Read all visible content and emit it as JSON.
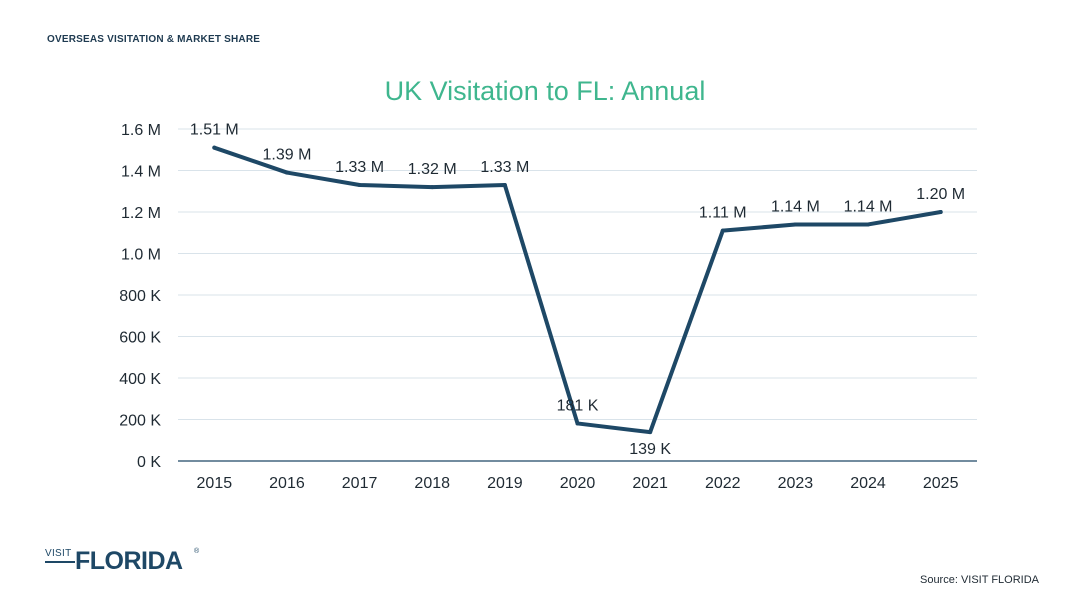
{
  "header": {
    "section_label": "OVERSEAS VISITATION & MARKET SHARE"
  },
  "footer": {
    "logo_small": "VISIT",
    "logo_big": "FLORIDA",
    "logo_reg": "®",
    "source": "Source: VISIT FLORIDA"
  },
  "colors": {
    "title": "#3fb68e",
    "line": "#1e4866",
    "grid": "#d9e3ea",
    "axis": "#1e4866",
    "text": "#1f2a33",
    "header_text": "#1e3a50"
  },
  "chart_data": {
    "type": "line",
    "title": "UK Visitation to FL: Annual",
    "xlabel": "",
    "ylabel": "",
    "categories": [
      "2015",
      "2016",
      "2017",
      "2018",
      "2019",
      "2020",
      "2021",
      "2022",
      "2023",
      "2024",
      "2025"
    ],
    "series": [
      {
        "values": [
          1510000,
          1390000,
          1330000,
          1320000,
          1330000,
          181000,
          139000,
          1110000,
          1140000,
          1140000,
          1200000
        ],
        "labels": [
          "1.51 M",
          "1.39 M",
          "1.33 M",
          "1.32 M",
          "1.33 M",
          "181 K",
          "139 K",
          "1.11 M",
          "1.14 M",
          "1.14 M",
          "1.20 M"
        ]
      }
    ],
    "ylim": [
      0,
      1600000
    ],
    "yticks": [
      0,
      200000,
      400000,
      600000,
      800000,
      1000000,
      1200000,
      1400000,
      1600000
    ],
    "ytick_labels": [
      "0 K",
      "200 K",
      "400 K",
      "600 K",
      "800 K",
      "1.0 M",
      "1.2 M",
      "1.4 M",
      "1.6 M"
    ],
    "grid": true,
    "legend": "none"
  }
}
